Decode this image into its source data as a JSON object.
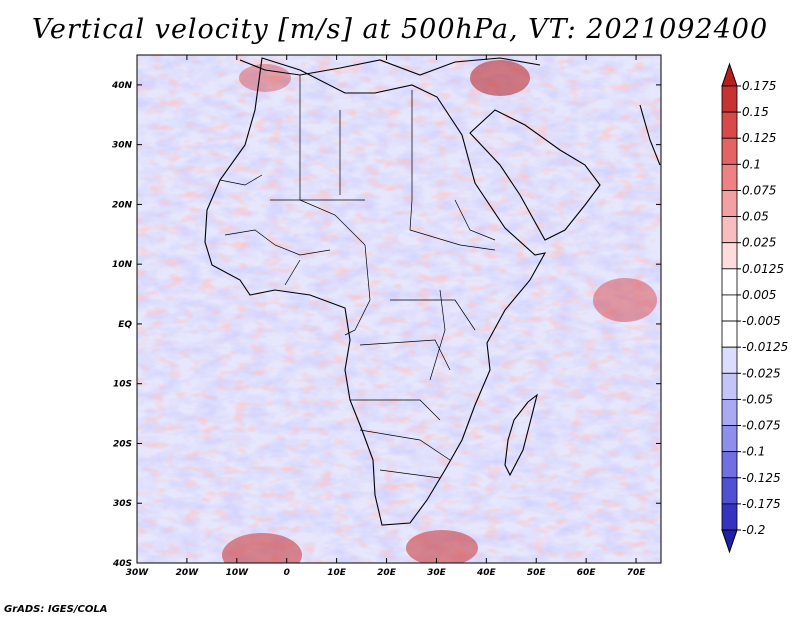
{
  "title": "Vertical velocity [m/s] at 500hPa, VT: 2021092400",
  "credit": "GrADS: IGES/COLA",
  "map": {
    "lon_range": [
      -30,
      75
    ],
    "lat_range": [
      -40,
      45
    ],
    "lat_ticks": [
      {
        "value": 40,
        "label": "40N"
      },
      {
        "value": 30,
        "label": "30N"
      },
      {
        "value": 20,
        "label": "20N"
      },
      {
        "value": 10,
        "label": "10N"
      },
      {
        "value": 0,
        "label": "EQ"
      },
      {
        "value": -10,
        "label": "10S"
      },
      {
        "value": -20,
        "label": "20S"
      },
      {
        "value": -30,
        "label": "30S"
      },
      {
        "value": -40,
        "label": "40S"
      }
    ],
    "lon_ticks": [
      {
        "value": -30,
        "label": "30W"
      },
      {
        "value": -20,
        "label": "20W"
      },
      {
        "value": -10,
        "label": "10W"
      },
      {
        "value": 0,
        "label": "0"
      },
      {
        "value": 10,
        "label": "10E"
      },
      {
        "value": 20,
        "label": "20E"
      },
      {
        "value": 30,
        "label": "30E"
      },
      {
        "value": 40,
        "label": "40E"
      },
      {
        "value": 50,
        "label": "50E"
      },
      {
        "value": 60,
        "label": "60E"
      },
      {
        "value": 70,
        "label": "70E"
      }
    ]
  },
  "colorbar": {
    "levels": [
      {
        "label": "0.175",
        "color": "#b81e1e"
      },
      {
        "label": "0.15",
        "color": "#c83232"
      },
      {
        "label": "0.125",
        "color": "#d84a4a"
      },
      {
        "label": "0.1",
        "color": "#e46464"
      },
      {
        "label": "0.075",
        "color": "#ee8282"
      },
      {
        "label": "0.05",
        "color": "#f4a0a0"
      },
      {
        "label": "0.025",
        "color": "#f8bebe"
      },
      {
        "label": "0.0125",
        "color": "#fcdcdc"
      },
      {
        "label": "0.005",
        "color": "#ffffff"
      },
      {
        "label": "-0.005",
        "color": "#ffffff"
      },
      {
        "label": "-0.0125",
        "color": "#dcdcfc"
      },
      {
        "label": "-0.025",
        "color": "#c4c4f8"
      },
      {
        "label": "-0.05",
        "color": "#aaaaf2"
      },
      {
        "label": "-0.075",
        "color": "#8e8eec"
      },
      {
        "label": "-0.1",
        "color": "#7070e2"
      },
      {
        "label": "-0.125",
        "color": "#5050d2"
      },
      {
        "label": "-0.175",
        "color": "#3434c0"
      },
      {
        "label": "-0.2",
        "color": "#2020a8"
      }
    ]
  }
}
